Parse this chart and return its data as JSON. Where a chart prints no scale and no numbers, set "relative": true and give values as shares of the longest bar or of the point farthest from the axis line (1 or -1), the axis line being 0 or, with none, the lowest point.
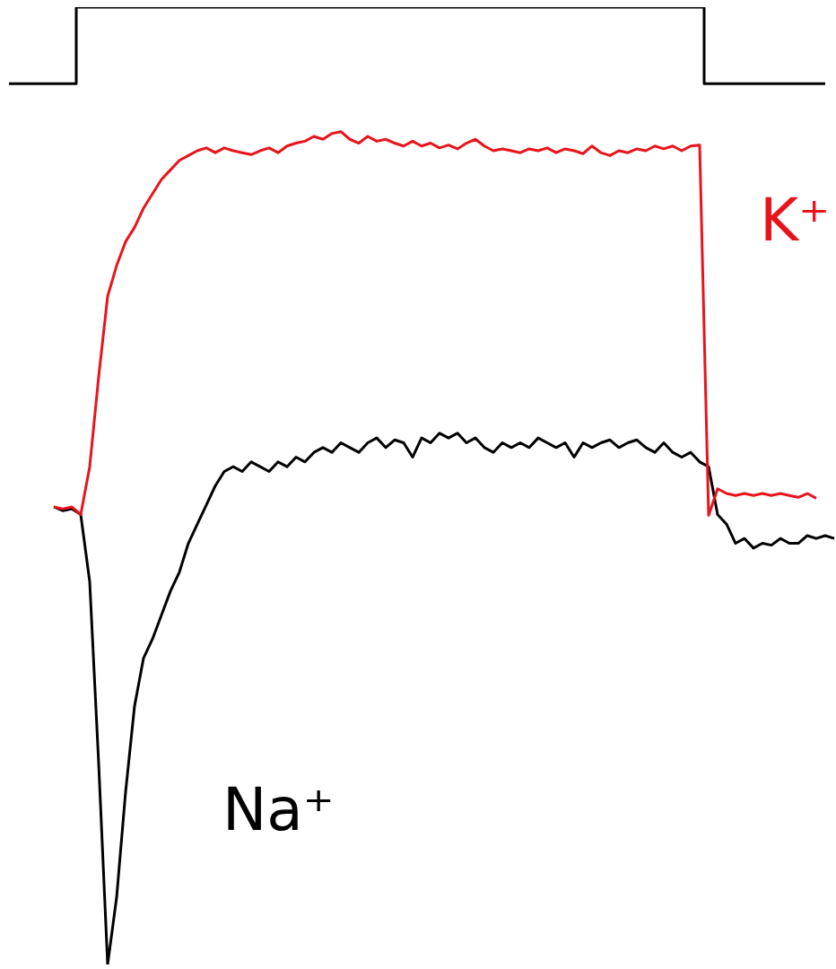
{
  "chart_data": {
    "type": "line",
    "relative": true,
    "legend": false,
    "grid": false,
    "marker": "none",
    "categories": [
      null,
      null,
      null,
      null,
      null,
      null,
      null,
      null,
      null,
      null,
      null,
      null,
      null,
      null,
      null,
      null,
      null,
      null,
      null,
      null,
      null,
      null,
      null,
      null,
      null,
      null,
      null,
      null,
      null,
      null,
      null,
      null,
      null,
      null,
      null,
      null,
      null,
      null,
      null,
      null,
      null,
      null,
      null,
      null,
      null,
      null,
      null,
      null,
      null,
      null,
      null,
      null,
      null,
      null,
      null,
      null,
      null,
      null,
      null,
      null,
      null,
      null,
      null,
      null,
      null,
      null,
      null,
      null,
      null,
      null,
      null,
      null,
      null,
      null,
      null,
      null,
      null,
      null,
      null,
      null,
      null,
      null,
      null,
      null,
      null,
      null,
      null,
      null,
      null,
      null,
      null,
      null,
      null
    ],
    "series": [
      {
        "type": "step",
        "color": "#000000",
        "values": [
          0.92,
          0.92,
          0.92,
          0.92,
          0.92,
          0.92,
          0.92,
          0.92,
          1,
          1,
          1,
          1,
          1,
          1,
          1,
          1,
          1,
          1,
          1,
          1,
          1,
          1,
          1,
          1,
          1,
          1,
          1,
          1,
          1,
          1,
          1,
          1,
          1,
          1,
          1,
          1,
          1,
          1,
          1,
          1,
          1,
          1,
          1,
          1,
          1,
          1,
          1,
          1,
          1,
          1,
          1,
          1,
          1,
          1,
          1,
          1,
          1,
          1,
          1,
          1,
          1,
          1,
          1,
          1,
          1,
          1,
          1,
          1,
          1,
          1,
          1,
          1,
          1,
          1,
          1,
          1,
          1,
          1,
          0.92,
          0.92,
          0.92,
          0.92,
          0.92,
          0.92,
          0.92,
          0.92,
          0.92,
          0.92,
          0.92,
          0.92,
          0.92,
          0.92,
          null
        ]
      },
      {
        "name": "K⁺",
        "color": "#e8141c",
        "values": [
          null,
          null,
          null,
          null,
          null,
          0.478,
          0.476,
          0.478,
          0.47,
          0.52,
          0.614,
          0.698,
          0.73,
          0.755,
          0.77,
          0.79,
          0.805,
          0.82,
          0.83,
          0.84,
          0.845,
          0.85,
          0.853,
          0.848,
          0.853,
          0.85,
          0.848,
          0.846,
          0.85,
          0.853,
          0.848,
          0.855,
          0.858,
          0.86,
          0.865,
          0.862,
          0.868,
          0.87,
          0.862,
          0.858,
          0.865,
          0.86,
          0.862,
          0.858,
          0.855,
          0.86,
          0.855,
          0.858,
          0.853,
          0.856,
          0.852,
          0.858,
          0.862,
          0.855,
          0.85,
          0.852,
          0.85,
          0.848,
          0.852,
          0.85,
          0.853,
          0.848,
          0.852,
          0.85,
          0.847,
          0.855,
          0.848,
          0.845,
          0.85,
          0.848,
          0.852,
          0.85,
          0.855,
          0.852,
          0.855,
          0.85,
          0.855,
          0.856,
          0.469,
          0.497,
          0.492,
          0.49,
          0.492,
          0.49,
          0.492,
          0.49,
          0.492,
          0.49,
          0.488,
          0.492,
          0.487,
          null,
          null
        ]
      },
      {
        "name": "Na⁺",
        "color": "#000000",
        "values": [
          null,
          null,
          null,
          null,
          null,
          0.478,
          0.474,
          0.476,
          0.47,
          0.4,
          0.21,
          0,
          0.07,
          0.18,
          0.27,
          0.32,
          0.34,
          0.365,
          0.39,
          0.41,
          0.44,
          0.46,
          0.48,
          0.5,
          0.515,
          0.52,
          0.515,
          0.525,
          0.52,
          0.515,
          0.525,
          0.52,
          0.53,
          0.525,
          0.535,
          0.54,
          0.535,
          0.545,
          0.54,
          0.535,
          0.545,
          0.55,
          0.54,
          0.548,
          0.545,
          0.53,
          0.55,
          0.545,
          0.555,
          0.55,
          0.555,
          0.545,
          0.55,
          0.54,
          0.535,
          0.545,
          0.54,
          0.545,
          0.54,
          0.55,
          0.545,
          0.54,
          0.545,
          0.53,
          0.545,
          0.54,
          0.545,
          0.548,
          0.54,
          0.545,
          0.548,
          0.54,
          0.535,
          0.545,
          0.535,
          0.53,
          0.535,
          0.525,
          0.52,
          0.47,
          0.46,
          0.44,
          0.445,
          0.435,
          0.44,
          0.438,
          0.445,
          0.44,
          0.44,
          0.448,
          0.445,
          0.448,
          0.445
        ]
      }
    ]
  }
}
